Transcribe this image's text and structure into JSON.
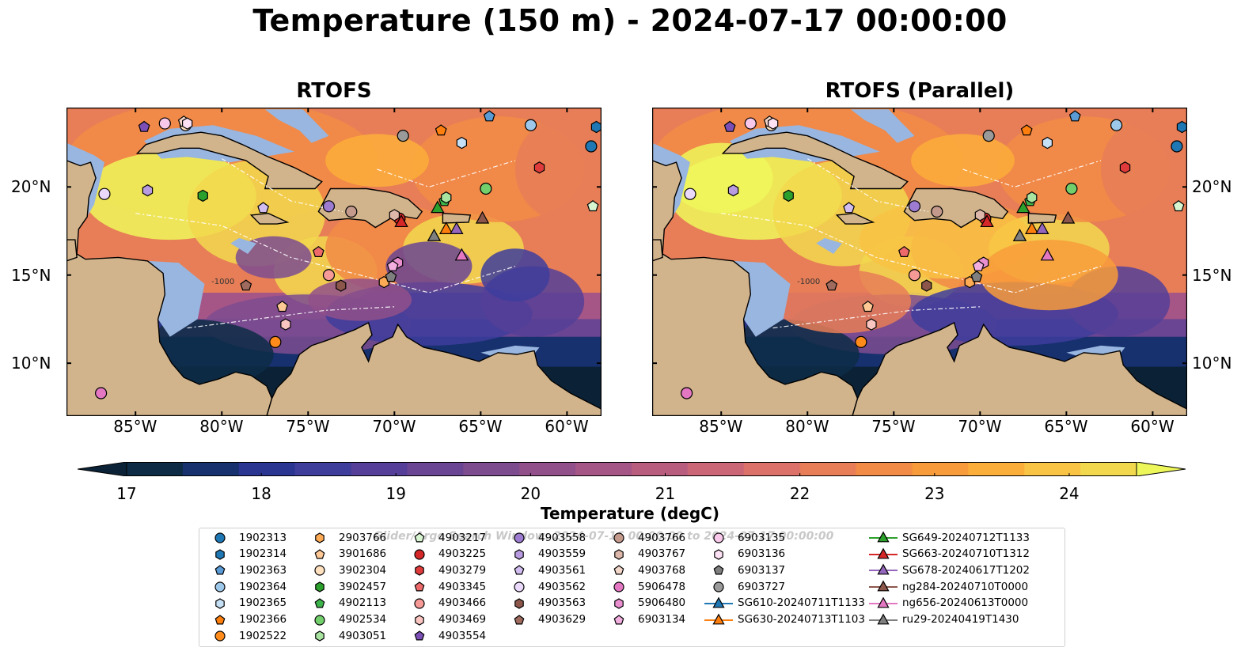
{
  "figure": {
    "title": "Temperature (150 m) - 2024-07-17 00:00:00",
    "panels": [
      {
        "title": "RTOFS",
        "model": "primary"
      },
      {
        "title": "RTOFS (Parallel)",
        "model": "parallel"
      }
    ]
  },
  "map": {
    "lon_range": [
      -89,
      -58
    ],
    "lat_range": [
      7,
      24.5
    ],
    "lon_ticks": [
      "85°W",
      "80°W",
      "75°W",
      "70°W",
      "65°W",
      "60°W"
    ],
    "lon_tick_values": [
      -85,
      -80,
      -75,
      -70,
      -65,
      -60
    ],
    "lat_ticks": [
      "20°N",
      "15°N",
      "10°N"
    ],
    "lat_tick_values": [
      20,
      15,
      10
    ],
    "land_color": "#d2b48c",
    "shelf_color": "#98b6e0",
    "contour_label": "-1000"
  },
  "colorbar": {
    "label": "Temperature (degC)",
    "min": 17,
    "max": 24.5,
    "tick_labels": [
      "17",
      "18",
      "19",
      "20",
      "21",
      "22",
      "23",
      "24"
    ],
    "tick_values": [
      17,
      18,
      19,
      20,
      21,
      22,
      23,
      24
    ],
    "colors": [
      "#0d2b45",
      "#17306e",
      "#2a3491",
      "#3e3d9c",
      "#553f98",
      "#6a4593",
      "#7d4c8f",
      "#92508a",
      "#a55586",
      "#b95d7f",
      "#cb6676",
      "#db7168",
      "#e77e57",
      "#f28b45",
      "#f89c3b",
      "#fbae3a",
      "#f9c344",
      "#f2d84d"
    ],
    "extend_low_color": "#0b2236",
    "extend_high_color": "#eef75a"
  },
  "legend": {
    "watermark": "Glider/Argo Search Window: 2024-07-16 00:00:00 to 2024-07-17 00:00:00",
    "columns": [
      [
        {
          "label": "1902313",
          "marker": "circle",
          "color": "#1f77b4"
        },
        {
          "label": "1902314",
          "marker": "hexagon",
          "color": "#1f77b4"
        },
        {
          "label": "1902363",
          "marker": "pentagon",
          "color": "#5a9bd5"
        },
        {
          "label": "1902364",
          "marker": "circle",
          "color": "#9ec8ea"
        },
        {
          "label": "1902365",
          "marker": "hexagon",
          "color": "#c6e0f5"
        },
        {
          "label": "1902366",
          "marker": "pentagon",
          "color": "#ff7f0e"
        },
        {
          "label": "1902522",
          "marker": "circle",
          "color": "#ff8c1a"
        }
      ],
      [
        {
          "label": "2903766",
          "marker": "hexagon",
          "color": "#ffaa55"
        },
        {
          "label": "3901686",
          "marker": "pentagon",
          "color": "#ffc894"
        },
        {
          "label": "3902304",
          "marker": "circle",
          "color": "#ffe0bf"
        },
        {
          "label": "3902457",
          "marker": "hexagon",
          "color": "#2ca02c"
        },
        {
          "label": "4902113",
          "marker": "pentagon",
          "color": "#3cb44b"
        },
        {
          "label": "4902534",
          "marker": "circle",
          "color": "#72cf6b"
        },
        {
          "label": "4903051",
          "marker": "hexagon",
          "color": "#a8e3a0"
        }
      ],
      [
        {
          "label": "4903217",
          "marker": "pentagon",
          "color": "#d7f5d0"
        },
        {
          "label": "4903225",
          "marker": "circle",
          "color": "#d62728"
        },
        {
          "label": "4903279",
          "marker": "hexagon",
          "color": "#e03b3b"
        },
        {
          "label": "4903345",
          "marker": "pentagon",
          "color": "#ee6a6a"
        },
        {
          "label": "4903466",
          "marker": "circle",
          "color": "#f59a96"
        },
        {
          "label": "4903469",
          "marker": "hexagon",
          "color": "#fbc6c2"
        },
        {
          "label": "4903554",
          "marker": "pentagon",
          "color": "#7b4fb5"
        }
      ],
      [
        {
          "label": "4903558",
          "marker": "circle",
          "color": "#9c7bd0"
        },
        {
          "label": "4903559",
          "marker": "hexagon",
          "color": "#b89be0"
        },
        {
          "label": "4903561",
          "marker": "pentagon",
          "color": "#d2bdf0"
        },
        {
          "label": "4903562",
          "marker": "circle",
          "color": "#ead9fa"
        },
        {
          "label": "4903563",
          "marker": "hexagon",
          "color": "#8c564b"
        },
        {
          "label": "4903629",
          "marker": "pentagon",
          "color": "#9e6b5e"
        }
      ],
      [
        {
          "label": "4903766",
          "marker": "circle",
          "color": "#c49a8c"
        },
        {
          "label": "4903767",
          "marker": "hexagon",
          "color": "#ddb8aa"
        },
        {
          "label": "4903768",
          "marker": "pentagon",
          "color": "#f2d6ca"
        },
        {
          "label": "5906478",
          "marker": "circle",
          "color": "#e377c2"
        },
        {
          "label": "5906480",
          "marker": "hexagon",
          "color": "#ea8fcf"
        },
        {
          "label": "6903134",
          "marker": "pentagon",
          "color": "#f3aee0"
        }
      ],
      [
        {
          "label": "6903135",
          "marker": "circle",
          "color": "#f8c8ea"
        },
        {
          "label": "6903136",
          "marker": "hexagon",
          "color": "#fde1f4"
        },
        {
          "label": "6903137",
          "marker": "pentagon",
          "color": "#7f7f7f"
        },
        {
          "label": "6903727",
          "marker": "circle",
          "color": "#9a9a9a"
        },
        {
          "label": "SG610-20240711T1133",
          "marker": "triangle",
          "color": "#1f77b4",
          "line": true
        },
        {
          "label": "SG630-20240713T1103",
          "marker": "triangle",
          "color": "#ff7f0e",
          "line": true
        }
      ],
      [
        {
          "label": "SG649-20240712T1133",
          "marker": "triangle",
          "color": "#2ca02c",
          "line": true
        },
        {
          "label": "SG663-20240710T1312",
          "marker": "triangle",
          "color": "#d62728",
          "line": true
        },
        {
          "label": "SG678-20240617T1202",
          "marker": "triangle",
          "color": "#9467bd",
          "line": true
        },
        {
          "label": "ng284-20240710T0000",
          "marker": "triangle",
          "color": "#8c564b",
          "line": true
        },
        {
          "label": "ng656-20240613T0000",
          "marker": "triangle",
          "color": "#e377c2",
          "line": true
        },
        {
          "label": "ru29-20240419T1430",
          "marker": "triangle",
          "color": "#7f7f7f",
          "line": true
        }
      ]
    ]
  },
  "observations": [
    {
      "id": "1902313",
      "lon": -58.6,
      "lat": 22.3
    },
    {
      "id": "1902314",
      "lon": -58.3,
      "lat": 23.4
    },
    {
      "id": "1902363",
      "lon": -64.5,
      "lat": 24.0
    },
    {
      "id": "1902364",
      "lon": -62.1,
      "lat": 23.5
    },
    {
      "id": "1902365",
      "lon": -66.1,
      "lat": 22.5
    },
    {
      "id": "1902366",
      "lon": -67.3,
      "lat": 23.2
    },
    {
      "id": "1902522",
      "lon": -76.9,
      "lat": 11.2
    },
    {
      "id": "2903766",
      "lon": -70.6,
      "lat": 14.6
    },
    {
      "id": "3901686",
      "lon": -76.5,
      "lat": 13.2
    },
    {
      "id": "3902304",
      "lon": -82.1,
      "lat": 23.5
    },
    {
      "id": "3902457",
      "lon": -81.1,
      "lat": 19.5
    },
    {
      "id": "4902113",
      "lon": -67.1,
      "lat": 19.2
    },
    {
      "id": "4902534",
      "lon": -64.7,
      "lat": 19.9
    },
    {
      "id": "4903051",
      "lon": -67.0,
      "lat": 19.4
    },
    {
      "id": "4903217",
      "lon": -58.5,
      "lat": 18.9
    },
    {
      "id": "4903225",
      "lon": -69.7,
      "lat": 18.2
    },
    {
      "id": "4903279",
      "lon": -61.6,
      "lat": 21.1
    },
    {
      "id": "4903345",
      "lon": -74.4,
      "lat": 16.3
    },
    {
      "id": "4903466",
      "lon": -73.8,
      "lat": 15.0
    },
    {
      "id": "4903469",
      "lon": -76.3,
      "lat": 12.2
    },
    {
      "id": "4903554",
      "lon": -84.5,
      "lat": 23.4
    },
    {
      "id": "4903558",
      "lon": -73.8,
      "lat": 18.9
    },
    {
      "id": "4903559",
      "lon": -84.3,
      "lat": 19.8
    },
    {
      "id": "4903561",
      "lon": -77.6,
      "lat": 18.8
    },
    {
      "id": "4903562",
      "lon": -86.8,
      "lat": 19.6
    },
    {
      "id": "4903563",
      "lon": -73.1,
      "lat": 14.4
    },
    {
      "id": "4903629",
      "lon": -78.6,
      "lat": 14.4
    },
    {
      "id": "4903766",
      "lon": -72.5,
      "lat": 18.6
    },
    {
      "id": "4903767",
      "lon": -70.0,
      "lat": 18.4
    },
    {
      "id": "4903768",
      "lon": -82.2,
      "lat": 23.7
    },
    {
      "id": "5906478",
      "lon": -87.0,
      "lat": 8.3
    },
    {
      "id": "5906480",
      "lon": -69.8,
      "lat": 15.7
    },
    {
      "id": "6903134",
      "lon": -70.1,
      "lat": 15.5
    },
    {
      "id": "6903135",
      "lon": -83.3,
      "lat": 23.6
    },
    {
      "id": "6903136",
      "lon": -82.0,
      "lat": 23.6
    },
    {
      "id": "6903137",
      "lon": -70.2,
      "lat": 14.9
    },
    {
      "id": "6903727",
      "lon": -69.5,
      "lat": 22.9
    },
    {
      "id": "SG630-20240713T1103",
      "lon": -67.0,
      "lat": 17.6
    },
    {
      "id": "SG649-20240712T1133",
      "lon": -67.5,
      "lat": 18.8
    },
    {
      "id": "SG663-20240710T1312",
      "lon": -69.6,
      "lat": 18.0
    },
    {
      "id": "SG678-20240617T1202",
      "lon": -66.4,
      "lat": 17.6
    },
    {
      "id": "ng284-20240710T0000",
      "lon": -64.9,
      "lat": 18.2
    },
    {
      "id": "ng656-20240613T0000",
      "lon": -66.1,
      "lat": 16.1
    },
    {
      "id": "ru29-20240419T1430",
      "lon": -67.7,
      "lat": 17.2
    }
  ]
}
